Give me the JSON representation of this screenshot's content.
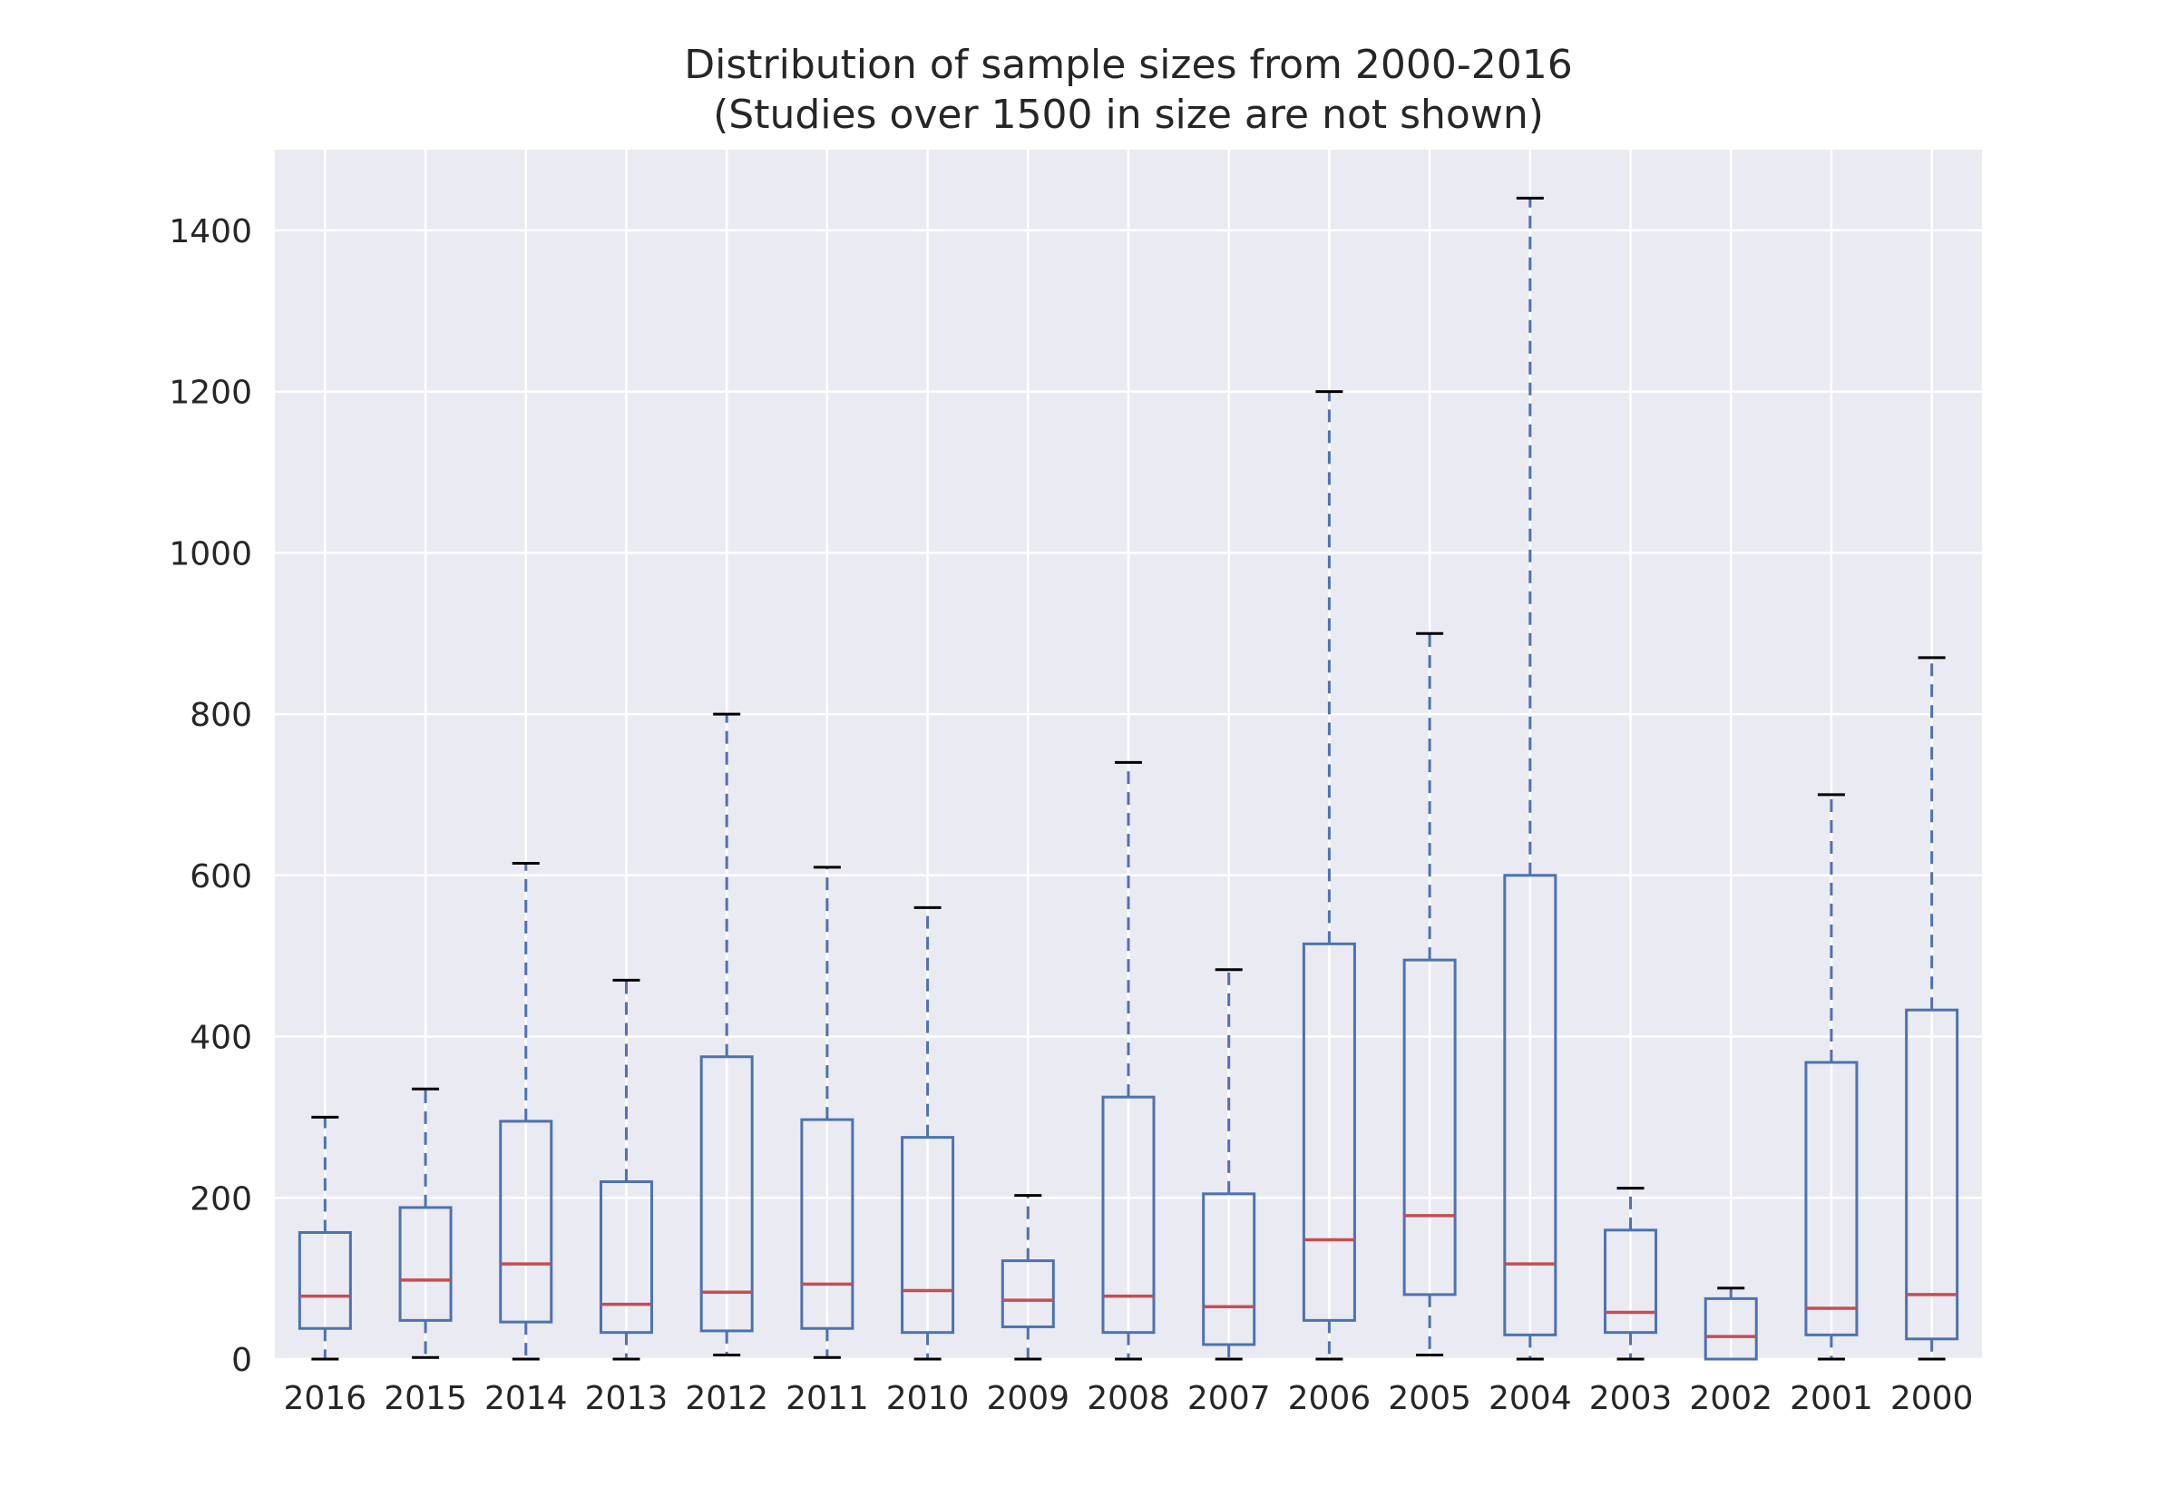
{
  "chart_data": {
    "type": "boxplot",
    "title": "Distribution of sample sizes from 2000-2016",
    "subtitle": "(Studies over 1500 in size are not shown)",
    "xlabel": "",
    "ylabel": "",
    "ylim": [
      0,
      1500
    ],
    "yticks": [
      0,
      200,
      400,
      600,
      800,
      1000,
      1200,
      1400
    ],
    "grid": true,
    "colors": {
      "background": "#eaeaf2",
      "grid": "#ffffff",
      "box": "#4c72b0",
      "median": "#c44e52",
      "cap": "#000000"
    },
    "categories": [
      "2016",
      "2015",
      "2014",
      "2013",
      "2012",
      "2011",
      "2010",
      "2009",
      "2008",
      "2007",
      "2006",
      "2005",
      "2004",
      "2003",
      "2002",
      "2001",
      "2000"
    ],
    "boxes": [
      {
        "label": "2016",
        "whisker_low": 0,
        "q1": 38,
        "median": 78,
        "q3": 157,
        "whisker_high": 300
      },
      {
        "label": "2015",
        "whisker_low": 2,
        "q1": 48,
        "median": 98,
        "q3": 188,
        "whisker_high": 335
      },
      {
        "label": "2014",
        "whisker_low": 0,
        "q1": 46,
        "median": 118,
        "q3": 295,
        "whisker_high": 615
      },
      {
        "label": "2013",
        "whisker_low": 0,
        "q1": 33,
        "median": 68,
        "q3": 220,
        "whisker_high": 470
      },
      {
        "label": "2012",
        "whisker_low": 5,
        "q1": 35,
        "median": 83,
        "q3": 375,
        "whisker_high": 800
      },
      {
        "label": "2011",
        "whisker_low": 2,
        "q1": 38,
        "median": 93,
        "q3": 297,
        "whisker_high": 610
      },
      {
        "label": "2010",
        "whisker_low": 0,
        "q1": 33,
        "median": 85,
        "q3": 275,
        "whisker_high": 560
      },
      {
        "label": "2009",
        "whisker_low": 0,
        "q1": 40,
        "median": 73,
        "q3": 122,
        "whisker_high": 203
      },
      {
        "label": "2008",
        "whisker_low": 0,
        "q1": 33,
        "median": 78,
        "q3": 325,
        "whisker_high": 740
      },
      {
        "label": "2007",
        "whisker_low": 0,
        "q1": 18,
        "median": 65,
        "q3": 205,
        "whisker_high": 483
      },
      {
        "label": "2006",
        "whisker_low": 0,
        "q1": 48,
        "median": 148,
        "q3": 515,
        "whisker_high": 1200
      },
      {
        "label": "2005",
        "whisker_low": 5,
        "q1": 80,
        "median": 178,
        "q3": 495,
        "whisker_high": 900
      },
      {
        "label": "2004",
        "whisker_low": 0,
        "q1": 30,
        "median": 118,
        "q3": 600,
        "whisker_high": 1440
      },
      {
        "label": "2003",
        "whisker_low": 0,
        "q1": 33,
        "median": 58,
        "q3": 160,
        "whisker_high": 212
      },
      {
        "label": "2002",
        "whisker_low": 0,
        "q1": 0,
        "median": 28,
        "q3": 75,
        "whisker_high": 88
      },
      {
        "label": "2001",
        "whisker_low": 0,
        "q1": 30,
        "median": 63,
        "q3": 368,
        "whisker_high": 700
      },
      {
        "label": "2000",
        "whisker_low": 0,
        "q1": 25,
        "median": 80,
        "q3": 433,
        "whisker_high": 870
      }
    ]
  }
}
